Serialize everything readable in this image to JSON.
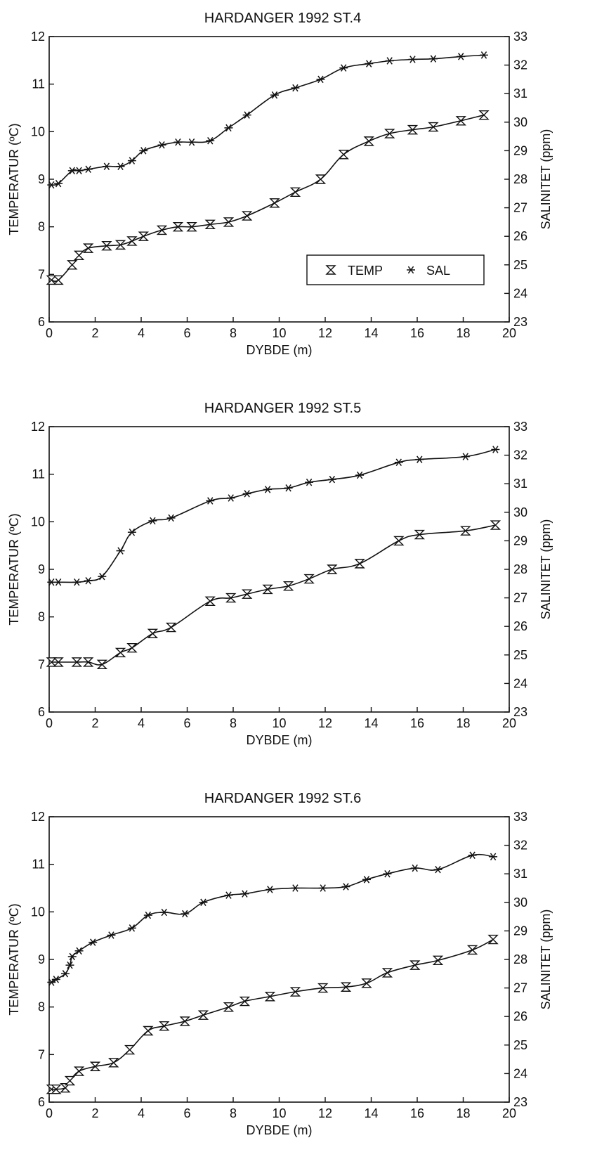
{
  "charts": [
    {
      "type": "line",
      "title": "HARDANGER 1992  ST.4",
      "xlabel": "DYBDE (m)",
      "ylabel": "TEMPERATUR (ºC)",
      "y2label": "SALINITET (ppm)",
      "xlim": [
        0,
        20
      ],
      "ylim": [
        6,
        12
      ],
      "y2lim": [
        23,
        33
      ],
      "xticks": [
        "0",
        "2",
        "4",
        "6",
        "8",
        "10",
        "12",
        "14",
        "16",
        "18",
        "20"
      ],
      "yticks": [
        "6",
        "7",
        "8",
        "9",
        "10",
        "11",
        "12"
      ],
      "y2ticks": [
        "23",
        "24",
        "25",
        "26",
        "27",
        "28",
        "29",
        "30",
        "31",
        "32",
        "33"
      ],
      "legend": {
        "show": true,
        "placement": "lower-right",
        "temp_label": "TEMP",
        "sal_label": "SAL"
      },
      "series": [
        {
          "name": "TEMP",
          "axis": "left",
          "marker": "hourglass",
          "x": [
            0.1,
            0.4,
            1.0,
            1.3,
            1.7,
            2.5,
            3.1,
            3.6,
            4.1,
            4.9,
            5.6,
            6.2,
            7.0,
            7.8,
            8.6,
            9.8,
            10.7,
            11.8,
            12.8,
            13.9,
            14.8,
            15.8,
            16.7,
            17.9,
            18.9
          ],
          "y": [
            6.88,
            6.88,
            7.2,
            7.4,
            7.55,
            7.6,
            7.62,
            7.7,
            7.8,
            7.93,
            8.0,
            8.0,
            8.05,
            8.1,
            8.23,
            8.5,
            8.73,
            9.0,
            9.52,
            9.8,
            9.96,
            10.04,
            10.1,
            10.23,
            10.35
          ]
        },
        {
          "name": "SAL",
          "axis": "right",
          "marker": "asterisk",
          "x": [
            0.1,
            0.4,
            1.0,
            1.3,
            1.7,
            2.5,
            3.1,
            3.6,
            4.1,
            4.9,
            5.6,
            6.2,
            7.0,
            7.8,
            8.6,
            9.8,
            10.7,
            11.8,
            12.8,
            13.9,
            14.8,
            15.8,
            16.7,
            17.9,
            18.9
          ],
          "y": [
            27.8,
            27.85,
            28.3,
            28.3,
            28.35,
            28.45,
            28.45,
            28.65,
            29.0,
            29.2,
            29.3,
            29.3,
            29.35,
            29.8,
            30.25,
            30.95,
            31.2,
            31.5,
            31.9,
            32.05,
            32.15,
            32.2,
            32.22,
            32.3,
            32.35
          ]
        }
      ]
    },
    {
      "type": "line",
      "title": "HARDANGER 1992  ST.5",
      "xlabel": "DYBDE (m)",
      "ylabel": "TEMPERATUR (ºC)",
      "y2label": "SALINITET (ppm)",
      "xlim": [
        0,
        20
      ],
      "ylim": [
        6,
        12
      ],
      "y2lim": [
        23,
        33
      ],
      "xticks": [
        "0",
        "2",
        "4",
        "6",
        "8",
        "10",
        "12",
        "14",
        "16",
        "18",
        "20"
      ],
      "yticks": [
        "6",
        "7",
        "8",
        "9",
        "10",
        "11",
        "12"
      ],
      "y2ticks": [
        "23",
        "24",
        "25",
        "26",
        "27",
        "28",
        "29",
        "30",
        "31",
        "32",
        "33"
      ],
      "legend": {
        "show": false
      },
      "series": [
        {
          "name": "TEMP",
          "axis": "left",
          "marker": "hourglass",
          "x": [
            0.1,
            0.4,
            1.2,
            1.7,
            2.3,
            3.1,
            3.6,
            4.5,
            5.3,
            7.0,
            7.9,
            8.6,
            9.5,
            10.4,
            11.3,
            12.3,
            13.5,
            15.2,
            16.1,
            18.1,
            19.4
          ],
          "y": [
            7.05,
            7.05,
            7.05,
            7.05,
            7.0,
            7.25,
            7.35,
            7.65,
            7.78,
            8.33,
            8.4,
            8.48,
            8.58,
            8.65,
            8.8,
            9.0,
            9.12,
            9.6,
            9.73,
            9.81,
            9.93
          ]
        },
        {
          "name": "SAL",
          "axis": "right",
          "marker": "asterisk",
          "x": [
            0.1,
            0.4,
            1.2,
            1.7,
            2.3,
            3.1,
            3.6,
            4.5,
            5.3,
            7.0,
            7.9,
            8.6,
            9.5,
            10.4,
            11.3,
            12.3,
            13.5,
            15.2,
            16.1,
            18.1,
            19.4
          ],
          "y": [
            27.55,
            27.55,
            27.55,
            27.6,
            27.75,
            28.65,
            29.3,
            29.7,
            29.8,
            30.4,
            30.5,
            30.65,
            30.8,
            30.85,
            31.05,
            31.15,
            31.3,
            31.75,
            31.85,
            31.95,
            32.2
          ]
        }
      ]
    },
    {
      "type": "line",
      "title": "HARDANGER 1992  ST.6",
      "xlabel": "DYBDE (m)",
      "ylabel": "TEMPERATUR (ºC)",
      "y2label": "SALINITET (ppm)",
      "xlim": [
        0,
        20
      ],
      "ylim": [
        6,
        12
      ],
      "y2lim": [
        23,
        33
      ],
      "xticks": [
        "0",
        "2",
        "4",
        "6",
        "8",
        "10",
        "12",
        "14",
        "16",
        "18",
        "20"
      ],
      "yticks": [
        "6",
        "7",
        "8",
        "9",
        "10",
        "11",
        "12"
      ],
      "y2ticks": [
        "23",
        "24",
        "25",
        "26",
        "27",
        "28",
        "29",
        "30",
        "31",
        "32",
        "33"
      ],
      "legend": {
        "show": false
      },
      "series": [
        {
          "name": "TEMP",
          "axis": "left",
          "marker": "hourglass",
          "x": [
            0.1,
            0.3,
            0.7,
            0.9,
            1.3,
            2.0,
            2.8,
            3.5,
            4.3,
            5.0,
            5.9,
            6.7,
            7.8,
            8.5,
            9.6,
            10.7,
            11.9,
            12.9,
            13.8,
            14.7,
            15.9,
            16.9,
            18.4,
            19.3
          ],
          "y": [
            6.27,
            6.27,
            6.3,
            6.45,
            6.65,
            6.75,
            6.83,
            7.1,
            7.5,
            7.6,
            7.7,
            7.83,
            8.0,
            8.12,
            8.22,
            8.32,
            8.4,
            8.42,
            8.5,
            8.72,
            8.88,
            8.98,
            9.2,
            9.42
          ]
        },
        {
          "name": "SAL",
          "axis": "right",
          "marker": "asterisk",
          "x": [
            0.1,
            0.3,
            0.7,
            0.9,
            1.0,
            1.3,
            1.9,
            2.7,
            3.6,
            4.3,
            5.0,
            5.9,
            6.7,
            7.8,
            8.5,
            9.6,
            10.7,
            11.9,
            12.9,
            13.8,
            14.7,
            15.9,
            16.9,
            18.4,
            19.3
          ],
          "y": [
            27.2,
            27.3,
            27.5,
            27.8,
            28.1,
            28.3,
            28.6,
            28.85,
            29.1,
            29.55,
            29.65,
            29.6,
            30.0,
            30.25,
            30.3,
            30.45,
            30.5,
            30.5,
            30.55,
            30.8,
            31.0,
            31.2,
            31.15,
            31.65,
            31.6
          ]
        }
      ]
    }
  ]
}
